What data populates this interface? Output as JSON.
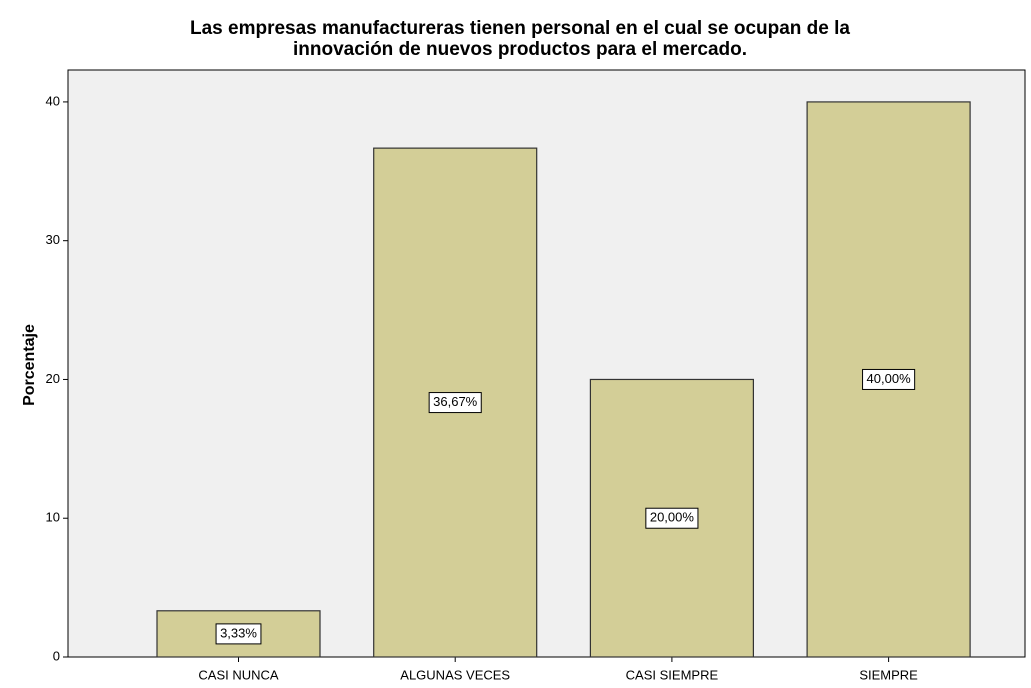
{
  "chart_data": {
    "type": "bar",
    "title": [
      "Las empresas manufactureras tienen personal en el cual se ocupan de la",
      "innovación de nuevos productos para el mercado."
    ],
    "ylabel": "Porcentaje",
    "categories": [
      "CASI NUNCA",
      "ALGUNAS VECES",
      "CASI SIEMPRE",
      "SIEMPRE"
    ],
    "values": [
      3.33,
      36.67,
      20,
      40
    ],
    "value_labels": [
      "3,33%",
      "36,67%",
      "20,00%",
      "40,00%"
    ],
    "color": "#d3ce97",
    "ylim": [
      0,
      42.3
    ],
    "yticks": [
      0,
      10,
      20,
      30,
      40
    ],
    "grid": false
  }
}
